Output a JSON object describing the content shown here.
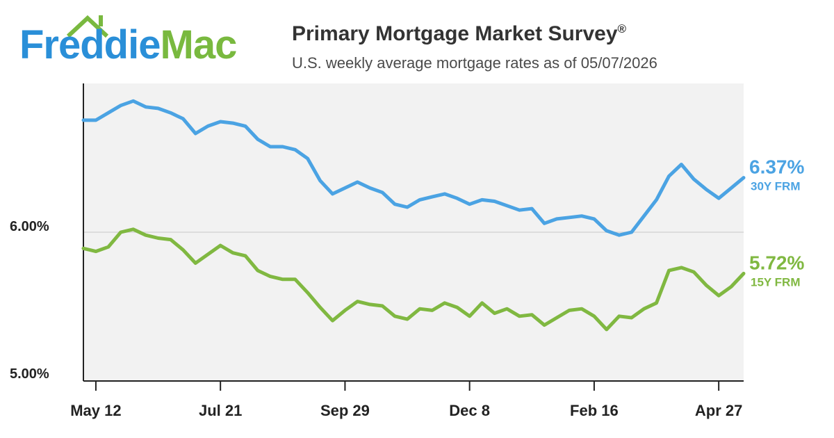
{
  "brand": {
    "logo_word1": "Freddie",
    "logo_word2": "Mac",
    "blue": "#2a8fd8",
    "green": "#79b93f"
  },
  "header": {
    "title": "Primary Mortgage Market Survey",
    "title_mark": "®",
    "subtitle": "U.S. weekly average mortgage rates as of 05/07/2026"
  },
  "chart_data": {
    "type": "line",
    "title": "Primary Mortgage Market Survey®",
    "subtitle": "U.S. weekly average mortgage rates as of 05/07/2026",
    "xlabel": "",
    "ylabel": "",
    "ylim": [
      5.0,
      7.0
    ],
    "yticks": [
      {
        "value": 5.0,
        "label": "5.00%"
      },
      {
        "value": 6.0,
        "label": "6.00%"
      }
    ],
    "grid": "horizontal at 6.00%",
    "xtick_labels": [
      {
        "index": 1,
        "label": "May 12"
      },
      {
        "index": 11,
        "label": "Jul 21"
      },
      {
        "index": 21,
        "label": "Sep 29"
      },
      {
        "index": 31,
        "label": "Dec 8"
      },
      {
        "index": 41,
        "label": "Feb 16"
      },
      {
        "index": 51,
        "label": "Apr 27"
      }
    ],
    "series": [
      {
        "name": "30Y FRM",
        "end_value_label": "6.37%",
        "color": "#4ba3e3",
        "values": [
          6.76,
          6.76,
          6.81,
          6.86,
          6.89,
          6.85,
          6.84,
          6.81,
          6.77,
          6.67,
          6.72,
          6.75,
          6.74,
          6.72,
          6.63,
          6.58,
          6.58,
          6.56,
          6.5,
          6.35,
          6.26,
          6.3,
          6.34,
          6.3,
          6.27,
          6.19,
          6.17,
          6.22,
          6.24,
          6.26,
          6.23,
          6.19,
          6.22,
          6.21,
          6.18,
          6.15,
          6.16,
          6.06,
          6.09,
          6.1,
          6.11,
          6.09,
          6.01,
          5.98,
          6.0,
          6.11,
          6.22,
          6.38,
          6.46,
          6.36,
          6.29,
          6.23,
          6.3,
          6.37
        ]
      },
      {
        "name": "15Y FRM",
        "end_value_label": "5.72%",
        "color": "#80b841",
        "values": [
          5.89,
          5.87,
          5.9,
          6.0,
          6.02,
          5.98,
          5.96,
          5.95,
          5.88,
          5.79,
          5.85,
          5.91,
          5.86,
          5.84,
          5.74,
          5.7,
          5.68,
          5.68,
          5.59,
          5.49,
          5.4,
          5.47,
          5.53,
          5.51,
          5.5,
          5.43,
          5.41,
          5.48,
          5.47,
          5.52,
          5.49,
          5.43,
          5.52,
          5.45,
          5.48,
          5.43,
          5.44,
          5.37,
          5.42,
          5.47,
          5.48,
          5.43,
          5.34,
          5.43,
          5.42,
          5.48,
          5.52,
          5.74,
          5.76,
          5.73,
          5.64,
          5.57,
          5.63,
          5.72
        ]
      }
    ]
  }
}
